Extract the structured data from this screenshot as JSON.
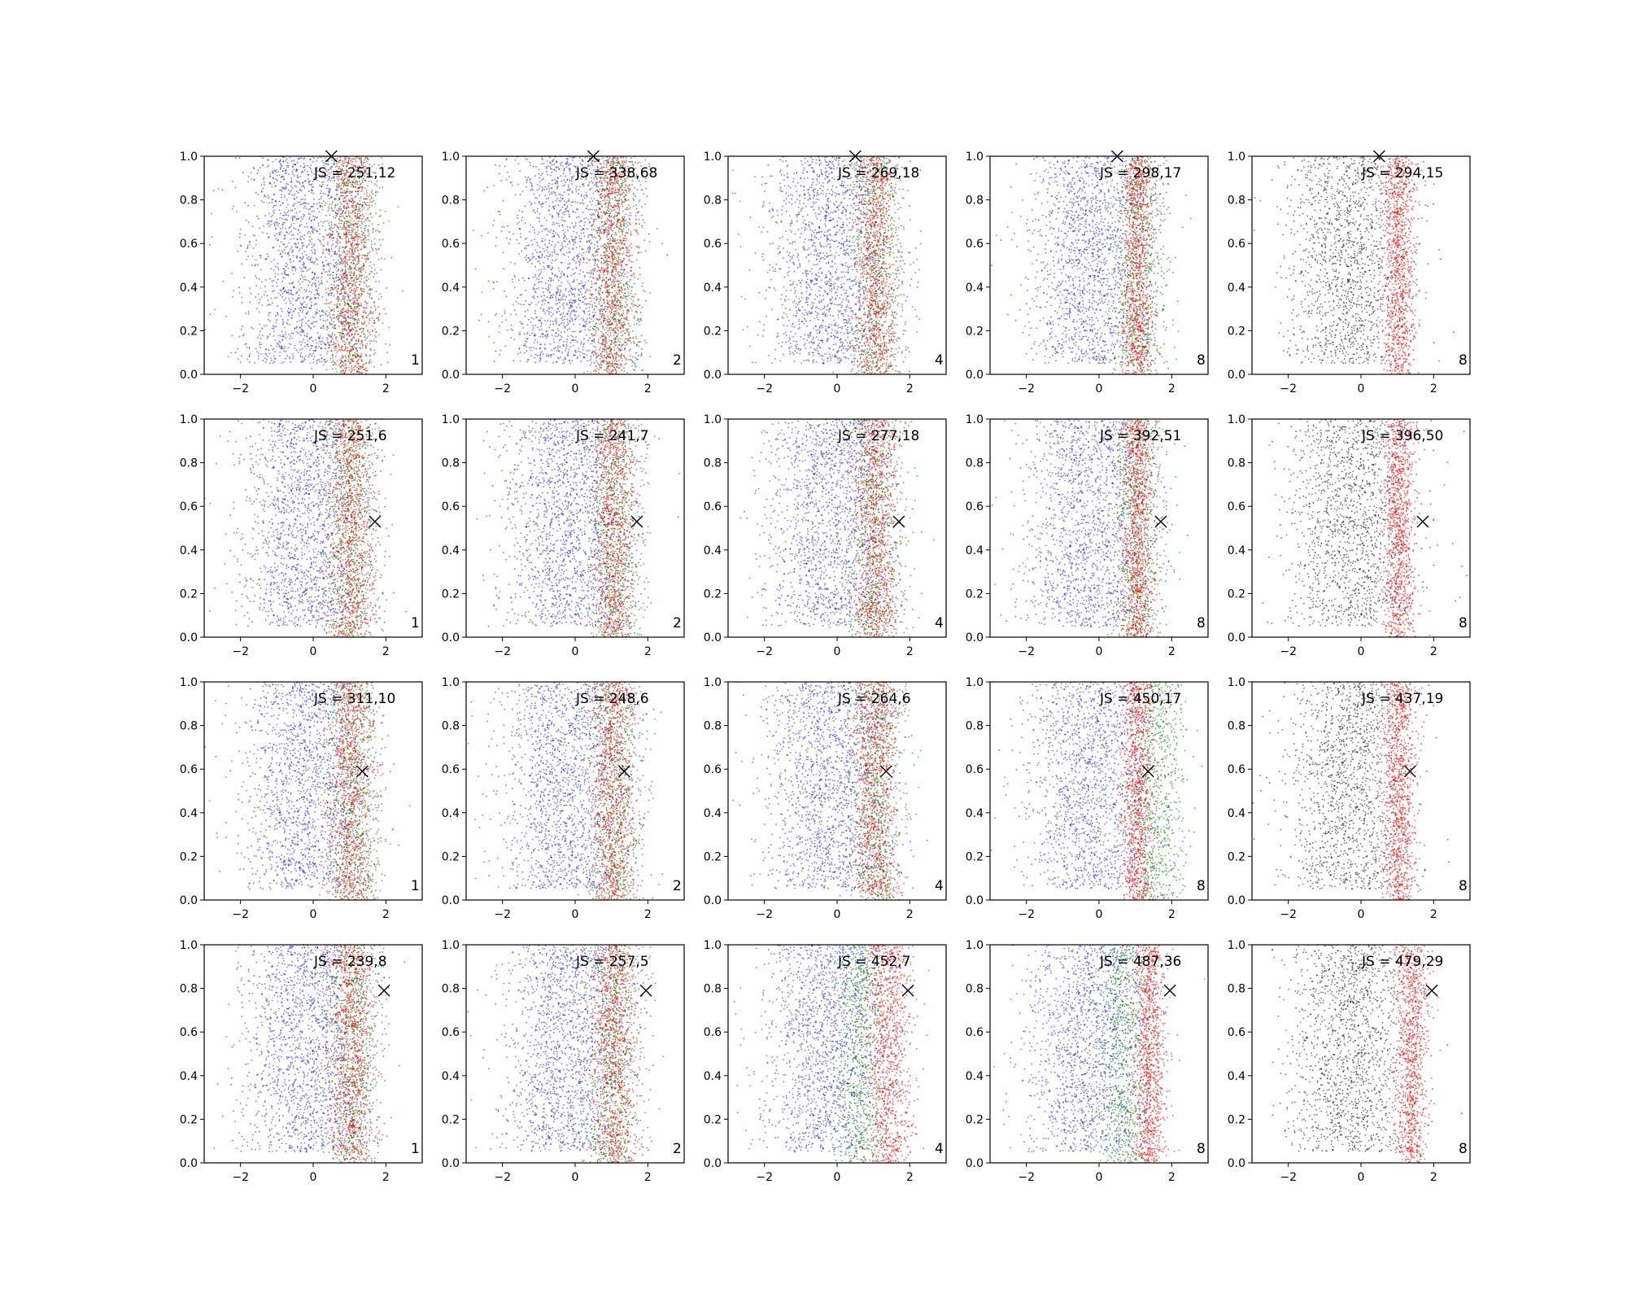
{
  "figure": {
    "layout": "4 rows x 5 columns grid of scatter subplots",
    "background": "#ffffff"
  },
  "colors": {
    "blue": "#0000ff",
    "green": "#008000",
    "red": "#ff0000",
    "black": "#000000"
  },
  "chart_data": {
    "type": "scatter",
    "xlim": [
      -3,
      3
    ],
    "ylim": [
      0,
      1
    ],
    "xticks": [
      -2,
      0,
      2
    ],
    "yticks": [
      0.0,
      0.2,
      0.4,
      0.6,
      0.8,
      1.0
    ],
    "xtick_labels": [
      "−2",
      "0",
      "2"
    ],
    "ytick_labels": [
      "0.0",
      "0.2",
      "0.4",
      "0.6",
      "0.8",
      "1.0"
    ],
    "grid": false,
    "legend": "none",
    "subplots": [
      {
        "row": 0,
        "col": 0,
        "js_label": "JS = 251,12",
        "count_label": "1",
        "marker": [
          0.5,
          1.0
        ]
      },
      {
        "row": 0,
        "col": 1,
        "js_label": "JS = 338,68",
        "count_label": "2",
        "marker": [
          0.5,
          1.0
        ]
      },
      {
        "row": 0,
        "col": 2,
        "js_label": "JS = 269,18",
        "count_label": "4",
        "marker": [
          0.5,
          1.0
        ]
      },
      {
        "row": 0,
        "col": 3,
        "js_label": "JS = 298,17",
        "count_label": "8",
        "marker": [
          0.5,
          1.0
        ]
      },
      {
        "row": 0,
        "col": 4,
        "js_label": "JS = 294,15",
        "count_label": "8",
        "marker": [
          0.5,
          1.0
        ]
      },
      {
        "row": 1,
        "col": 0,
        "js_label": "JS = 251,6",
        "count_label": "1",
        "marker": [
          1.7,
          0.53
        ]
      },
      {
        "row": 1,
        "col": 1,
        "js_label": "JS = 241,7",
        "count_label": "2",
        "marker": [
          1.7,
          0.53
        ]
      },
      {
        "row": 1,
        "col": 2,
        "js_label": "JS = 277,18",
        "count_label": "4",
        "marker": [
          1.7,
          0.53
        ]
      },
      {
        "row": 1,
        "col": 3,
        "js_label": "JS = 392,51",
        "count_label": "8",
        "marker": [
          1.7,
          0.53
        ]
      },
      {
        "row": 1,
        "col": 4,
        "js_label": "JS = 396,50",
        "count_label": "8",
        "marker": [
          1.7,
          0.53
        ]
      },
      {
        "row": 2,
        "col": 0,
        "js_label": "JS = 311,10",
        "count_label": "1",
        "marker": [
          1.35,
          0.59
        ]
      },
      {
        "row": 2,
        "col": 1,
        "js_label": "JS = 248,6",
        "count_label": "2",
        "marker": [
          1.35,
          0.59
        ]
      },
      {
        "row": 2,
        "col": 2,
        "js_label": "JS = 264,6",
        "count_label": "4",
        "marker": [
          1.35,
          0.59
        ]
      },
      {
        "row": 2,
        "col": 3,
        "js_label": "JS = 450,17",
        "count_label": "8",
        "marker": [
          1.35,
          0.59
        ]
      },
      {
        "row": 2,
        "col": 4,
        "js_label": "JS = 437,19",
        "count_label": "8",
        "marker": [
          1.35,
          0.59
        ]
      },
      {
        "row": 3,
        "col": 0,
        "js_label": "JS = 239,8",
        "count_label": "1",
        "marker": [
          1.95,
          0.79
        ]
      },
      {
        "row": 3,
        "col": 1,
        "js_label": "JS = 257,5",
        "count_label": "2",
        "marker": [
          1.95,
          0.79
        ]
      },
      {
        "row": 3,
        "col": 2,
        "js_label": "JS = 452,7",
        "count_label": "4",
        "marker": [
          1.95,
          0.79
        ]
      },
      {
        "row": 3,
        "col": 3,
        "js_label": "JS = 487,36",
        "count_label": "8",
        "marker": [
          1.95,
          0.79
        ]
      },
      {
        "row": 3,
        "col": 4,
        "js_label": "JS = 479,29",
        "count_label": "8",
        "marker": [
          1.95,
          0.79
        ]
      }
    ]
  }
}
